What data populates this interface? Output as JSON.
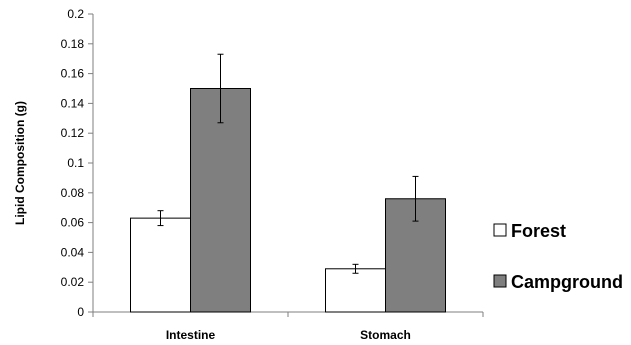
{
  "chart_data": {
    "type": "bar",
    "title": "",
    "xlabel": "",
    "ylabel": "Lipid Composition (g)",
    "ylim": [
      0,
      0.2
    ],
    "yticks": [
      "0",
      "0.02",
      "0.04",
      "0.06",
      "0.08",
      "0.1",
      "0.12",
      "0.14",
      "0.16",
      "0.18",
      "0.2"
    ],
    "categories": [
      "Intestine",
      "Stomach"
    ],
    "series": [
      {
        "name": "Forest",
        "values": [
          0.063,
          0.029
        ],
        "errors": [
          0.005,
          0.003
        ],
        "color": "#ffffff"
      },
      {
        "name": "Campground",
        "values": [
          0.15,
          0.076
        ],
        "errors": [
          0.023,
          0.015
        ],
        "color": "#7f7f7f"
      }
    ],
    "grid": false,
    "legend": "right",
    "error_bars": true
  }
}
